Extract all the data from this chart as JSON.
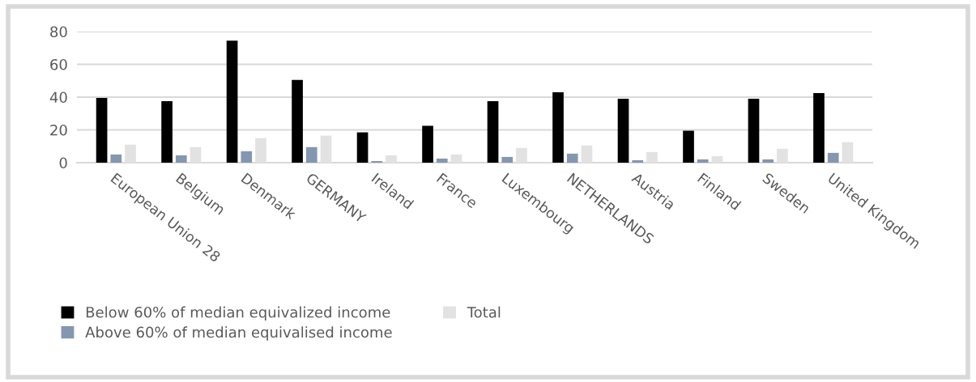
{
  "chart_data": {
    "type": "bar",
    "categories": [
      "European Union 28",
      "Belgium",
      "Denmark",
      "GERMANY",
      "Ireland",
      "France",
      "Luxembourg",
      "NETHERLANDS",
      "Austria",
      "Finland",
      "Sweden",
      "United Kingdom"
    ],
    "series": [
      {
        "name": "Below 60% of median equivalized income",
        "color": "#000000",
        "values": [
          39.5,
          37.5,
          74.5,
          50.5,
          18.5,
          22.5,
          37.5,
          43,
          39,
          19.5,
          39,
          42.5
        ]
      },
      {
        "name": "Above 60% of median equivalised income",
        "color": "#8497b0",
        "values": [
          5,
          4.5,
          7,
          9.5,
          1,
          2.5,
          3.5,
          5.5,
          1.5,
          2,
          2,
          6
        ]
      },
      {
        "name": "Total",
        "color": "#e2e2e2",
        "values": [
          11,
          9.5,
          15,
          16.5,
          4.5,
          5,
          9,
          10.5,
          6.5,
          4,
          8.5,
          12.5
        ]
      }
    ],
    "ylim": [
      0,
      80
    ],
    "yticks": [
      0,
      20,
      40,
      60,
      80
    ],
    "grid": "y",
    "legend": "bottom"
  }
}
